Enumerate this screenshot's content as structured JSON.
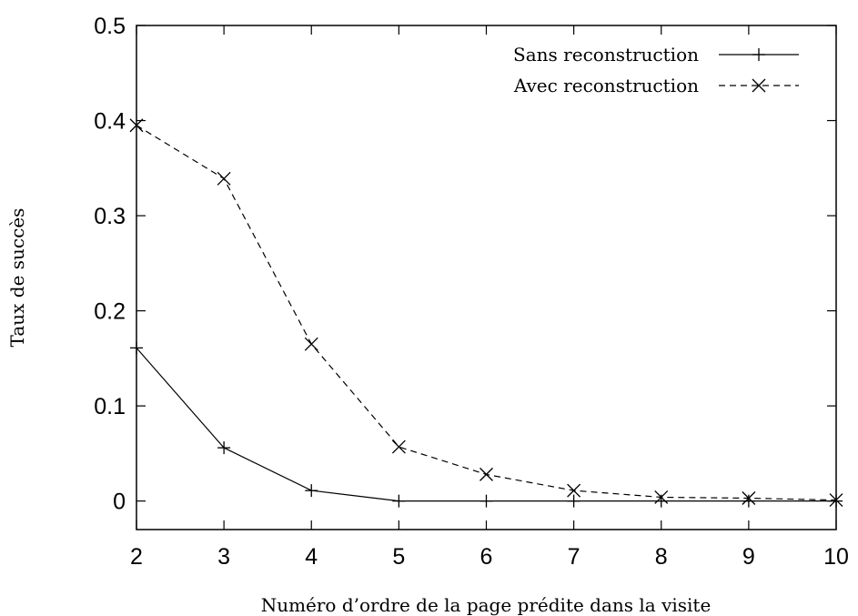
{
  "chart_data": {
    "type": "line",
    "title": "",
    "xlabel": "Numéro d’ordre de la page prédite dans la visite",
    "ylabel": "Taux de succès",
    "x": [
      2,
      3,
      4,
      5,
      6,
      7,
      8,
      9,
      10
    ],
    "xlim": [
      2,
      10
    ],
    "ylim": [
      -0.03,
      0.5
    ],
    "xticks": [
      2,
      3,
      4,
      5,
      6,
      7,
      8,
      9,
      10
    ],
    "yticks": [
      0,
      0.1,
      0.2,
      0.3,
      0.4,
      0.5
    ],
    "x_tick_labels": [
      "2",
      "3",
      "4",
      "5",
      "6",
      "7",
      "8",
      "9",
      "10"
    ],
    "y_tick_labels": [
      "0",
      "0.1",
      "0.2",
      "0.3",
      "0.4",
      "0.5"
    ],
    "grid": false,
    "legend_position": "top-right",
    "series": [
      {
        "name": "Sans reconstruction",
        "values": [
          0.161,
          0.056,
          0.011,
          0.0,
          0.0,
          0.0,
          0.0,
          0.0,
          0.0
        ],
        "line_style": "solid",
        "marker": "plus",
        "color": "#000000"
      },
      {
        "name": "Avec reconstruction",
        "values": [
          0.395,
          0.339,
          0.165,
          0.057,
          0.028,
          0.011,
          0.004,
          0.003,
          0.001
        ],
        "line_style": "dashed",
        "marker": "cross",
        "color": "#000000"
      }
    ]
  }
}
